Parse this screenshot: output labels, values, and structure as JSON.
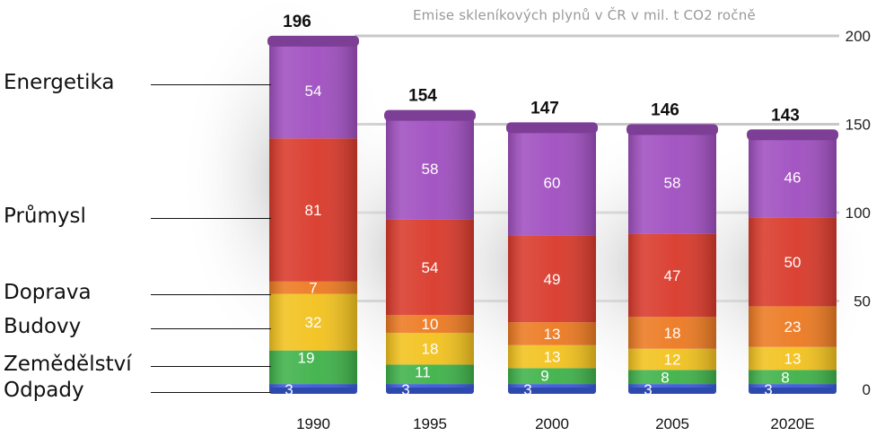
{
  "chart_data": {
    "type": "bar",
    "stacked": true,
    "title": "Emise skleníkových plynů v ČR v mil. t CO2 ročně",
    "categories": [
      "1990",
      "1995",
      "2000",
      "2005",
      "2020E"
    ],
    "totals": [
      196,
      154,
      147,
      146,
      143
    ],
    "series": [
      {
        "name": "Odpady",
        "color": "#3a5bd9",
        "values": [
          3,
          3,
          3,
          3,
          3
        ]
      },
      {
        "name": "Zemědělství",
        "color": "#3fb24a",
        "values": [
          19,
          11,
          9,
          8,
          8
        ]
      },
      {
        "name": "Budovy",
        "color": "#f2c21e",
        "values": [
          32,
          18,
          13,
          12,
          13
        ]
      },
      {
        "name": "Doprava",
        "color": "#ec7a22",
        "values": [
          7,
          10,
          13,
          18,
          23
        ]
      },
      {
        "name": "Průmysl",
        "color": "#d93a2b",
        "values": [
          81,
          54,
          49,
          47,
          50
        ]
      },
      {
        "name": "Energetika",
        "color": "#a04fc0",
        "values": [
          54,
          58,
          60,
          58,
          46
        ]
      }
    ],
    "ylim": [
      0,
      200
    ],
    "yticks": [
      0,
      50,
      100,
      150,
      200
    ],
    "grid": true,
    "legend": "left"
  }
}
